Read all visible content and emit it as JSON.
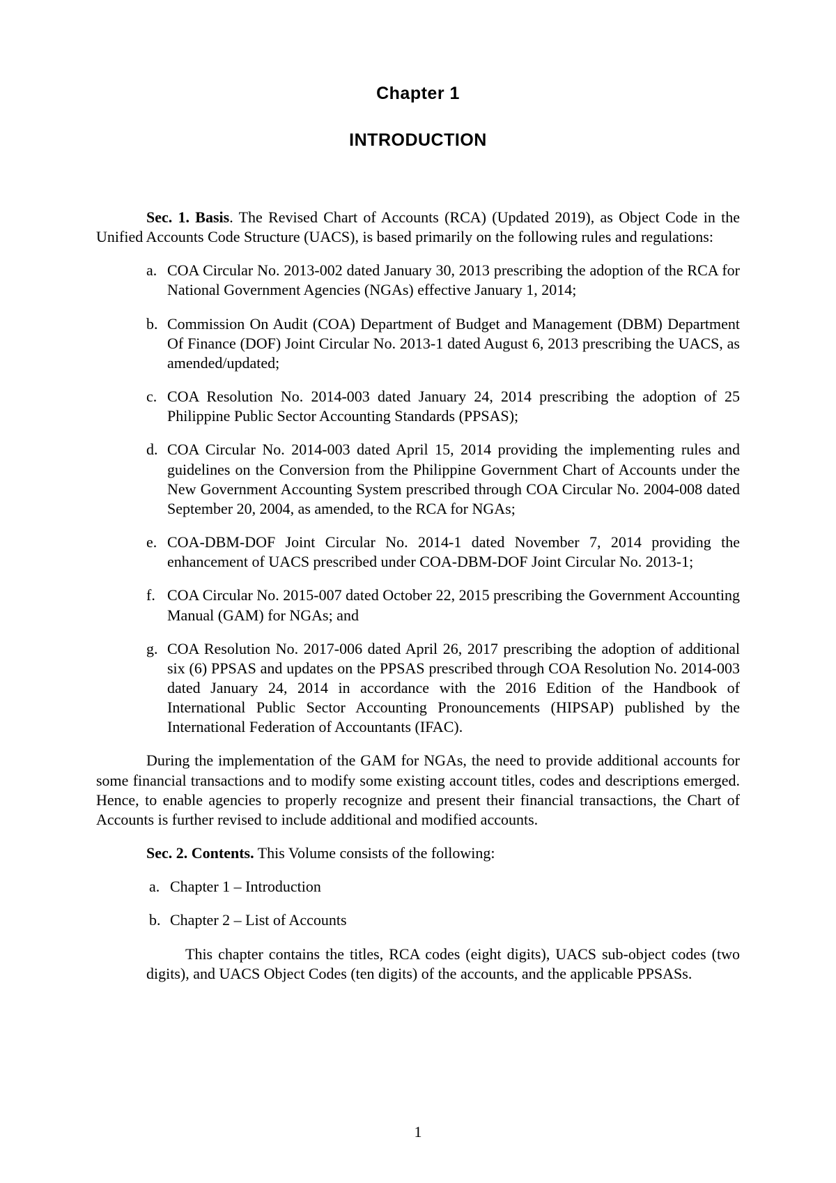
{
  "chapter_heading": "Chapter 1",
  "title_heading": "INTRODUCTION",
  "sec1": {
    "label": "Sec. 1.  Basis",
    "intro": ". The Revised Chart of Accounts (RCA) (Updated 2019), as Object Code in the Unified Accounts Code Structure (UACS), is based primarily on the following rules and regulations:",
    "items": [
      {
        "marker": "a.",
        "text": "COA Circular No. 2013-002 dated January 30, 2013 prescribing the adoption of the RCA for National Government Agencies (NGAs) effective January 1, 2014;"
      },
      {
        "marker": "b.",
        "text": "Commission On Audit (COA) Department of Budget and Management (DBM) Department Of Finance (DOF) Joint Circular No. 2013-1 dated August 6, 2013 prescribing the UACS, as amended/updated;"
      },
      {
        "marker": "c.",
        "text": "COA Resolution No. 2014-003 dated January 24, 2014 prescribing the adoption of 25 Philippine Public Sector Accounting Standards (PPSAS);"
      },
      {
        "marker": "d.",
        "text": "COA Circular No. 2014-003 dated April 15, 2014 providing the implementing rules and guidelines on the Conversion from the Philippine Government Chart of Accounts under the New Government Accounting System prescribed through COA Circular No. 2004-008 dated September 20, 2004, as amended, to the RCA for NGAs;"
      },
      {
        "marker": "e.",
        "text": "COA-DBM-DOF Joint Circular No. 2014-1 dated November 7, 2014 providing the enhancement of UACS prescribed under COA-DBM-DOF Joint Circular No. 2013-1;"
      },
      {
        "marker": "f.",
        "text": "COA Circular No. 2015-007 dated October 22, 2015 prescribing the Government Accounting Manual (GAM) for NGAs; and"
      },
      {
        "marker": "g.",
        "text": "COA Resolution No. 2017-006 dated April 26, 2017 prescribing the adoption of additional six (6) PPSAS and updates on the PPSAS prescribed through COA Resolution No. 2014-003 dated January 24, 2014 in accordance with the 2016 Edition of the Handbook of International Public Sector Accounting Pronouncements (HIPSAP) published by the International Federation of Accountants (IFAC)."
      }
    ],
    "closing": "During the implementation of the GAM for NGAs, the need to provide additional accounts for some financial transactions and to modify some existing account titles, codes and descriptions emerged. Hence, to enable agencies to properly recognize and present their financial transactions, the Chart of Accounts is further revised to include additional and modified accounts."
  },
  "sec2": {
    "label": "Sec. 2.  Contents.",
    "intro": "  This Volume consists of the following:",
    "items": [
      {
        "marker": "a.",
        "text": "Chapter 1 – Introduction"
      },
      {
        "marker": "b.",
        "text": "Chapter 2 – List of Accounts"
      }
    ],
    "sub_para": "This chapter contains the titles, RCA codes (eight digits), UACS sub-object codes (two digits), and UACS Object Codes (ten digits) of the accounts, and the applicable PPSASs."
  },
  "page_number": "1"
}
